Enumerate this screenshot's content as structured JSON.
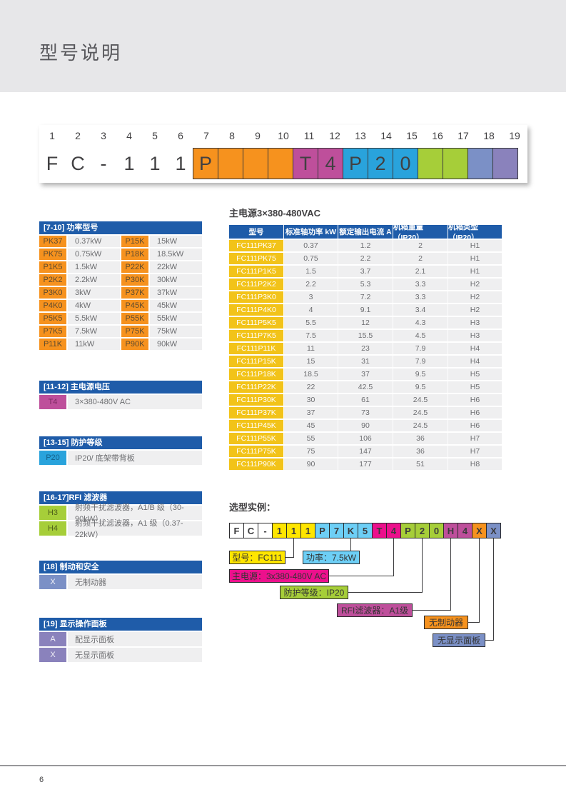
{
  "page": {
    "title": "型号说明",
    "page_number": "6"
  },
  "colors": {
    "header_band": "#E7E7E9",
    "header_blue": "#1F5CA9",
    "cell_gray": "#EFEFF0",
    "cell_text": "#6D6E71",
    "line": "#3A3A3C",
    "groups": {
      "none": {
        "bg": "#FFFFFF",
        "fg": "#414042"
      },
      "orange": {
        "bg": "#F6921E",
        "fg": "#5E4B2F"
      },
      "magenta": {
        "bg": "#BE4F9B",
        "fg": "#7C2A62"
      },
      "blue": {
        "bg": "#29A3DC",
        "fg": "#14618A"
      },
      "green": {
        "bg": "#A6CE39",
        "fg": "#50621C"
      },
      "periwinkle": {
        "bg": "#7B90C6",
        "fg": "#F2F3F8"
      },
      "purple": {
        "bg": "#8A82BC",
        "fg": "#F2F1F7"
      },
      "yellow": {
        "bg": "#FFE600",
        "fg": "#414042"
      },
      "lightblue": {
        "bg": "#6DCFF6",
        "fg": "#414042"
      },
      "pink": {
        "bg": "#EC108C",
        "fg": "#44121F"
      },
      "table_yellow": {
        "bg": "#F2C319",
        "fg": "#FFFFFF"
      }
    }
  },
  "model_code": {
    "positions": [
      "1",
      "2",
      "3",
      "4",
      "5",
      "6",
      "7",
      "8",
      "9",
      "10",
      "11",
      "12",
      "13",
      "14",
      "15",
      "16",
      "17",
      "18",
      "19"
    ],
    "cells": [
      {
        "char": "F",
        "group": "none"
      },
      {
        "char": "C",
        "group": "none"
      },
      {
        "char": "-",
        "group": "none"
      },
      {
        "char": "1",
        "group": "none"
      },
      {
        "char": "1",
        "group": "none"
      },
      {
        "char": "1",
        "group": "none"
      },
      {
        "char": "P",
        "group": "orange"
      },
      {
        "char": "",
        "group": "orange"
      },
      {
        "char": "",
        "group": "orange"
      },
      {
        "char": "",
        "group": "orange"
      },
      {
        "char": "T",
        "group": "magenta"
      },
      {
        "char": "4",
        "group": "magenta"
      },
      {
        "char": "P",
        "group": "blue"
      },
      {
        "char": "2",
        "group": "blue"
      },
      {
        "char": "0",
        "group": "blue"
      },
      {
        "char": "",
        "group": "green"
      },
      {
        "char": "",
        "group": "green"
      },
      {
        "char": "",
        "group": "periwinkle"
      },
      {
        "char": "",
        "group": "purple"
      }
    ]
  },
  "left_tables": {
    "power": {
      "title": "[7-10] 功率型号",
      "group": "orange",
      "rows": [
        {
          "c1": "PK37",
          "v1": "0.37kW",
          "c2": "P15K",
          "v2": "15kW"
        },
        {
          "c1": "PK75",
          "v1": "0.75kW",
          "c2": "P18K",
          "v2": "18.5kW"
        },
        {
          "c1": "P1K5",
          "v1": "1.5kW",
          "c2": "P22K",
          "v2": "22kW"
        },
        {
          "c1": "P2K2",
          "v1": "2.2kW",
          "c2": "P30K",
          "v2": "30kW"
        },
        {
          "c1": "P3K0",
          "v1": "3kW",
          "c2": "P37K",
          "v2": "37kW"
        },
        {
          "c1": "P4K0",
          "v1": "4kW",
          "c2": "P45K",
          "v2": "45kW"
        },
        {
          "c1": "P5K5",
          "v1": "5.5kW",
          "c2": "P55K",
          "v2": "55kW"
        },
        {
          "c1": "P7K5",
          "v1": "7.5kW",
          "c2": "P75K",
          "v2": "75kW"
        },
        {
          "c1": "P11K",
          "v1": "11kW",
          "c2": "P90K",
          "v2": "90kW"
        }
      ]
    },
    "voltage": {
      "title": "[11-12] 主电源电压",
      "group": "magenta",
      "rows": [
        {
          "code": "T4",
          "value": "3×380-480V AC"
        }
      ]
    },
    "protection": {
      "title": "[13-15] 防护等级",
      "group": "blue",
      "rows": [
        {
          "code": "P20",
          "value": "IP20/ 底架带背板"
        }
      ]
    },
    "rfi": {
      "title": "[16-17]RFI 滤波器",
      "group": "green",
      "rows": [
        {
          "code": "H3",
          "value": "射频干扰滤波器，A1/B 级（30-90kW）"
        },
        {
          "code": "H4",
          "value": "射频干扰滤波器，A1 级（0.37-22kW）"
        }
      ]
    },
    "brake": {
      "title": "[18] 制动和安全",
      "group": "periwinkle",
      "rows": [
        {
          "code": "X",
          "value": "无制动器"
        }
      ]
    },
    "panel": {
      "title": "[19] 显示操作面板",
      "group": "purple",
      "rows": [
        {
          "code": "A",
          "value": "配显示面板"
        },
        {
          "code": "X",
          "value": "无显示面板"
        }
      ]
    }
  },
  "main_table": {
    "title": "主电源3×380-480VAC",
    "headers": [
      "型号",
      "标准轴功率 kW",
      "额定输出电流 A",
      "机箱重量（IP20）",
      "机箱类型（IP20）"
    ],
    "rows": [
      [
        "FC111PK37",
        "0.37",
        "1.2",
        "2",
        "H1"
      ],
      [
        "FC111PK75",
        "0.75",
        "2.2",
        "2",
        "H1"
      ],
      [
        "FC111P1K5",
        "1.5",
        "3.7",
        "2.1",
        "H1"
      ],
      [
        "FC111P2K2",
        "2.2",
        "5.3",
        "3.3",
        "H2"
      ],
      [
        "FC111P3K0",
        "3",
        "7.2",
        "3.3",
        "H2"
      ],
      [
        "FC111P4K0",
        "4",
        "9.1",
        "3.4",
        "H2"
      ],
      [
        "FC111P5K5",
        "5.5",
        "12",
        "4.3",
        "H3"
      ],
      [
        "FC111P7K5",
        "7.5",
        "15.5",
        "4.5",
        "H3"
      ],
      [
        "FC111P11K",
        "11",
        "23",
        "7.9",
        "H4"
      ],
      [
        "FC111P15K",
        "15",
        "31",
        "7.9",
        "H4"
      ],
      [
        "FC111P18K",
        "18.5",
        "37",
        "9.5",
        "H5"
      ],
      [
        "FC111P22K",
        "22",
        "42.5",
        "9.5",
        "H5"
      ],
      [
        "FC111P30K",
        "30",
        "61",
        "24.5",
        "H6"
      ],
      [
        "FC111P37K",
        "37",
        "73",
        "24.5",
        "H6"
      ],
      [
        "FC111P45K",
        "45",
        "90",
        "24.5",
        "H6"
      ],
      [
        "FC111P55K",
        "55",
        "106",
        "36",
        "H7"
      ],
      [
        "FC111P75K",
        "75",
        "147",
        "36",
        "H7"
      ],
      [
        "FC111P90K",
        "90",
        "177",
        "51",
        "H8"
      ]
    ]
  },
  "example": {
    "title": "选型实例：",
    "cells": [
      {
        "char": "F",
        "group": "none"
      },
      {
        "char": "C",
        "group": "none"
      },
      {
        "char": "-",
        "group": "none"
      },
      {
        "char": "1",
        "group": "yellow"
      },
      {
        "char": "1",
        "group": "yellow"
      },
      {
        "char": "1",
        "group": "yellow"
      },
      {
        "char": "P",
        "group": "lightblue"
      },
      {
        "char": "7",
        "group": "lightblue"
      },
      {
        "char": "K",
        "group": "lightblue"
      },
      {
        "char": "5",
        "group": "lightblue"
      },
      {
        "char": "T",
        "group": "pink"
      },
      {
        "char": "4",
        "group": "pink"
      },
      {
        "char": "P",
        "group": "green"
      },
      {
        "char": "2",
        "group": "green"
      },
      {
        "char": "0",
        "group": "green"
      },
      {
        "char": "H",
        "group": "magenta"
      },
      {
        "char": "4",
        "group": "magenta"
      },
      {
        "char": "X",
        "group": "orange"
      },
      {
        "char": "X",
        "group": "periwinkle"
      }
    ],
    "labels": [
      {
        "text": "型号：FC111",
        "group": "yellow"
      },
      {
        "text": "功率：7.5kW",
        "group": "lightblue"
      },
      {
        "text": "主电源：3x380-480V AC",
        "group": "pink"
      },
      {
        "text": "防护等级：IP20",
        "group": "green"
      },
      {
        "text": "RFI滤波器：A1级",
        "group": "magenta"
      },
      {
        "text": "无制动器",
        "group": "orange"
      },
      {
        "text": "无显示面板",
        "group": "periwinkle"
      }
    ]
  }
}
